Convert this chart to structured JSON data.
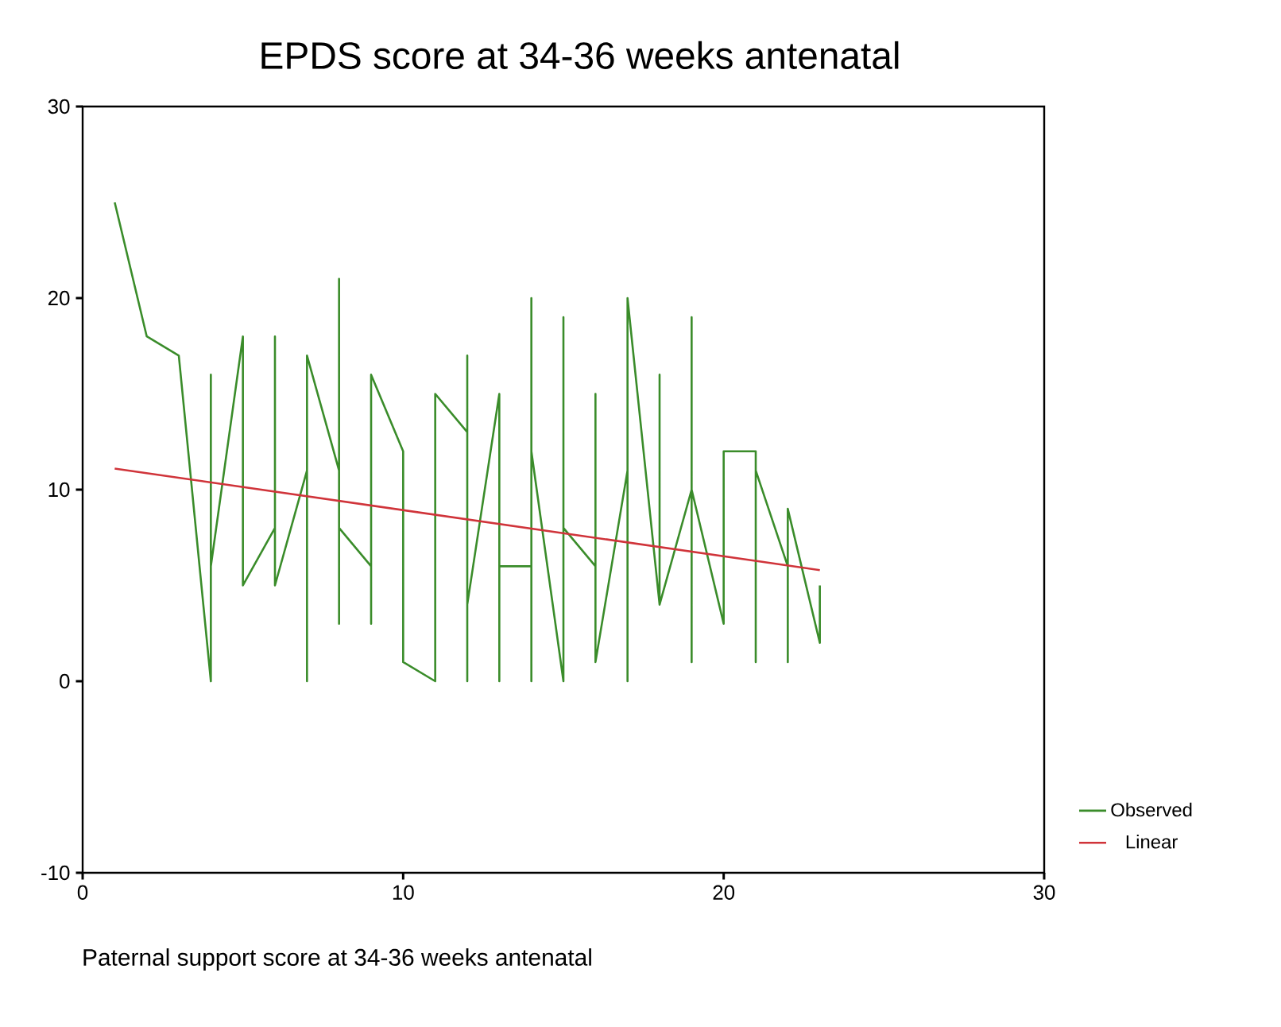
{
  "chart_data": {
    "type": "line",
    "title": "EPDS score at 34-36 weeks antenatal",
    "xlabel": "Paternal support score at 34-36 weeks antenatal",
    "xlim": [
      0,
      30
    ],
    "ylim": [
      -10,
      30
    ],
    "xticks": [
      0,
      10,
      20,
      30
    ],
    "yticks": [
      -10,
      0,
      10,
      20,
      30
    ],
    "grid": false,
    "legend": "right",
    "marker": "none",
    "line_style": "solid",
    "series": [
      {
        "name": "Observed",
        "color": "#3a8c2a",
        "x": [
          1,
          2,
          3,
          4,
          4,
          4,
          5,
          5,
          6,
          6,
          6,
          7,
          7,
          7,
          8,
          8,
          8,
          8,
          9,
          9,
          9,
          10,
          10,
          11,
          11,
          12,
          12,
          12,
          12,
          13,
          13,
          13,
          14,
          14,
          14,
          14,
          15,
          15,
          15,
          16,
          16,
          16,
          17,
          17,
          17,
          18,
          18,
          18,
          19,
          19,
          19,
          19,
          20,
          20,
          21,
          21,
          21,
          22,
          22,
          22,
          23,
          23
        ],
        "values": [
          25,
          18,
          17,
          0,
          16,
          6,
          18,
          5,
          8,
          18,
          5,
          11,
          0,
          17,
          11,
          21,
          3,
          8,
          6,
          3,
          16,
          12,
          1,
          0,
          15,
          13,
          17,
          0,
          4,
          15,
          0,
          6,
          6,
          0,
          20,
          12,
          0,
          19,
          8,
          6,
          15,
          1,
          11,
          0,
          20,
          4,
          16,
          4,
          10,
          19,
          1,
          10,
          3,
          12,
          12,
          1,
          11,
          6,
          1,
          9,
          2,
          5
        ]
      },
      {
        "name": "Linear",
        "color": "#d0343a",
        "x": [
          1,
          23
        ],
        "values": [
          11.1,
          5.8
        ]
      }
    ]
  }
}
